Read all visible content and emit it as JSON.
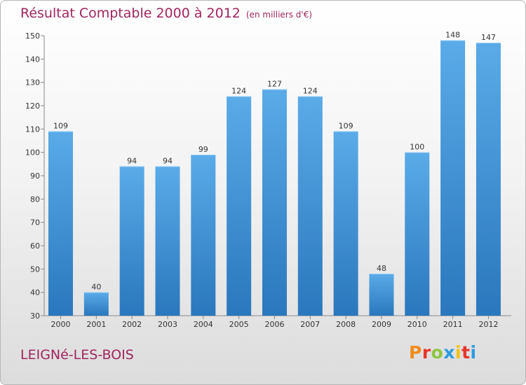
{
  "header": {
    "title": "Résultat Comptable 2000 à 2012",
    "subtitle": "(en milliers d'€)"
  },
  "footer": {
    "town": "LEIGNé-LES-BOIS",
    "logo_text": "Proxiti",
    "logo_colors": [
      "#f08c1a",
      "#e8352b",
      "#8cc63f",
      "#2d9be0",
      "#f2c10f",
      "#e8352b",
      "#2d9be0"
    ]
  },
  "chart_data": {
    "type": "bar",
    "title": "Résultat Comptable 2000 à 2012",
    "subtitle": "(en milliers d'€)",
    "categories": [
      "2000",
      "2001",
      "2002",
      "2003",
      "2004",
      "2005",
      "2006",
      "2007",
      "2008",
      "2009",
      "2010",
      "2011",
      "2012"
    ],
    "values": [
      109,
      40,
      94,
      94,
      99,
      124,
      127,
      124,
      109,
      48,
      100,
      148,
      147
    ],
    "xlabel": "",
    "ylabel": "",
    "ylim": [
      30,
      150
    ],
    "yticks": [
      30,
      40,
      50,
      60,
      70,
      80,
      90,
      100,
      110,
      120,
      130,
      140,
      150
    ],
    "grid": false,
    "bar_color_top": "#5aabe8",
    "bar_color_bottom": "#2a77bd",
    "axis_color": "#888888"
  }
}
